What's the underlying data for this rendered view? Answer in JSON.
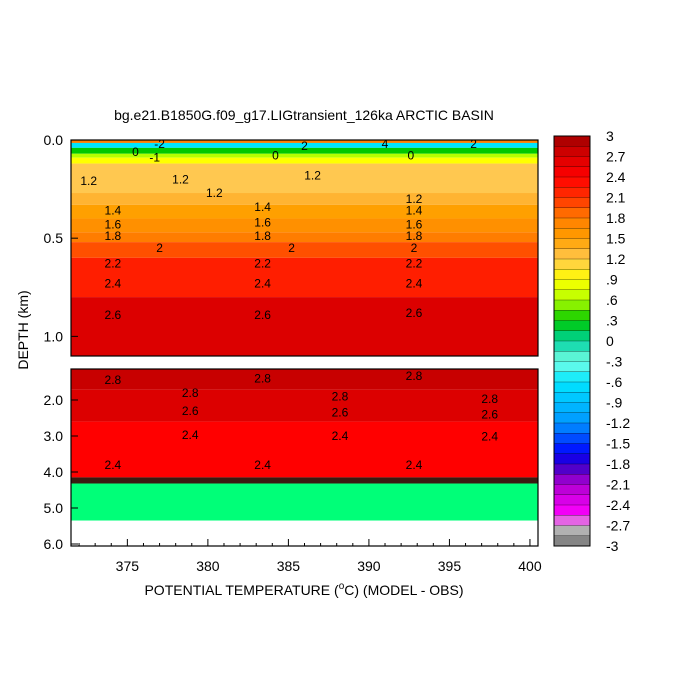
{
  "chart_data": {
    "type": "heatmap",
    "title": "bg.e21.B1850G.f09_g17.LIGtransient_126ka ARCTIC BASIN",
    "xlabel_pre": "POTENTIAL TEMPERATURE (",
    "xlabel_sup": "o",
    "xlabel_post": "C) (MODEL - OBS)",
    "ylabel": "DEPTH (km)",
    "xlim": [
      371.5,
      400.5
    ],
    "x_ticks": [
      "375",
      "380",
      "385",
      "390",
      "395",
      "400"
    ],
    "panels": [
      {
        "name": "upper",
        "ylim": [
          0.0,
          1.1
        ],
        "y_ticks": [
          "0.0",
          "0.5",
          "1.0"
        ],
        "contour_labels": [
          {
            "x": 377,
            "depth": 0.02,
            "text": "-2"
          },
          {
            "x": 375.5,
            "depth": 0.06,
            "text": "0"
          },
          {
            "x": 386,
            "depth": 0.03,
            "text": "2"
          },
          {
            "x": 391,
            "depth": 0.02,
            "text": "4"
          },
          {
            "x": 396.5,
            "depth": 0.02,
            "text": "2"
          },
          {
            "x": 376.7,
            "depth": 0.09,
            "text": "-1"
          },
          {
            "x": 384.2,
            "depth": 0.08,
            "text": "0"
          },
          {
            "x": 392.6,
            "depth": 0.08,
            "text": "0"
          },
          {
            "x": 372.6,
            "depth": 0.21,
            "text": "1.2"
          },
          {
            "x": 378.3,
            "depth": 0.2,
            "text": "1.2"
          },
          {
            "x": 380.4,
            "depth": 0.27,
            "text": "1.2"
          },
          {
            "x": 386.5,
            "depth": 0.18,
            "text": "1.2"
          },
          {
            "x": 392.8,
            "depth": 0.3,
            "text": "1.2"
          },
          {
            "x": 374.1,
            "depth": 0.36,
            "text": "1.4"
          },
          {
            "x": 383.4,
            "depth": 0.34,
            "text": "1.4"
          },
          {
            "x": 392.8,
            "depth": 0.36,
            "text": "1.4"
          },
          {
            "x": 374.1,
            "depth": 0.43,
            "text": "1.6"
          },
          {
            "x": 383.4,
            "depth": 0.42,
            "text": "1.6"
          },
          {
            "x": 392.8,
            "depth": 0.43,
            "text": "1.6"
          },
          {
            "x": 374.1,
            "depth": 0.49,
            "text": "1.8"
          },
          {
            "x": 383.4,
            "depth": 0.49,
            "text": "1.8"
          },
          {
            "x": 392.8,
            "depth": 0.49,
            "text": "1.8"
          },
          {
            "x": 377.0,
            "depth": 0.55,
            "text": "2"
          },
          {
            "x": 385.2,
            "depth": 0.55,
            "text": "2"
          },
          {
            "x": 392.8,
            "depth": 0.55,
            "text": "2"
          },
          {
            "x": 374.1,
            "depth": 0.63,
            "text": "2.2"
          },
          {
            "x": 383.4,
            "depth": 0.63,
            "text": "2.2"
          },
          {
            "x": 392.8,
            "depth": 0.63,
            "text": "2.2"
          },
          {
            "x": 374.1,
            "depth": 0.73,
            "text": "2.4"
          },
          {
            "x": 383.4,
            "depth": 0.73,
            "text": "2.4"
          },
          {
            "x": 392.8,
            "depth": 0.73,
            "text": "2.4"
          },
          {
            "x": 374.1,
            "depth": 0.89,
            "text": "2.6"
          },
          {
            "x": 383.4,
            "depth": 0.89,
            "text": "2.6"
          },
          {
            "x": 392.8,
            "depth": 0.88,
            "text": "2.6"
          }
        ]
      },
      {
        "name": "lower",
        "ylim": [
          1.1,
          6.0
        ],
        "y_ticks": [
          "2.0",
          "3.0",
          "4.0",
          "5.0",
          "6.0"
        ],
        "y_tick_values": [
          2.0,
          3.0,
          4.0,
          5.0,
          6.0
        ],
        "contour_labels": [
          {
            "x": 374.1,
            "depth": 1.42,
            "text": "2.8"
          },
          {
            "x": 383.4,
            "depth": 1.38,
            "text": "2.8"
          },
          {
            "x": 392.8,
            "depth": 1.3,
            "text": "2.8"
          },
          {
            "x": 378.9,
            "depth": 1.8,
            "text": "2.8"
          },
          {
            "x": 388.2,
            "depth": 1.9,
            "text": "2.8"
          },
          {
            "x": 397.5,
            "depth": 1.97,
            "text": "2.8"
          },
          {
            "x": 378.9,
            "depth": 2.3,
            "text": "2.6"
          },
          {
            "x": 388.2,
            "depth": 2.35,
            "text": "2.6"
          },
          {
            "x": 397.5,
            "depth": 2.4,
            "text": "2.6"
          },
          {
            "x": 378.9,
            "depth": 2.97,
            "text": "2.4"
          },
          {
            "x": 388.2,
            "depth": 3.0,
            "text": "2.4"
          },
          {
            "x": 397.5,
            "depth": 3.02,
            "text": "2.4"
          },
          {
            "x": 374.1,
            "depth": 3.8,
            "text": "2.4"
          },
          {
            "x": 383.4,
            "depth": 3.8,
            "text": "2.4"
          },
          {
            "x": 392.8,
            "depth": 3.8,
            "text": "2.4"
          }
        ]
      }
    ],
    "colorbar": {
      "min": -3,
      "max": 3,
      "step": 0.15,
      "tick_labels": [
        "3",
        "2.7",
        "2.4",
        "2.1",
        "1.8",
        "1.5",
        "1.2",
        ".9",
        ".6",
        ".3",
        "0",
        "-.3",
        "-.6",
        "-.9",
        "-1.2",
        "-1.5",
        "-1.8",
        "-2.1",
        "-2.4",
        "-2.7",
        "-3"
      ],
      "color_stops": [
        {
          "v": -3.0,
          "c": "#6e6e6e"
        },
        {
          "v": -2.7,
          "c": "#c8c8c8"
        },
        {
          "v": -2.55,
          "c": "#ff00ff"
        },
        {
          "v": -2.1,
          "c": "#b000d0"
        },
        {
          "v": -1.8,
          "c": "#3200c8"
        },
        {
          "v": -1.65,
          "c": "#0000ff"
        },
        {
          "v": -1.2,
          "c": "#0096ff"
        },
        {
          "v": -0.6,
          "c": "#00e6ff"
        },
        {
          "v": -0.3,
          "c": "#78ffe6"
        },
        {
          "v": 0.0,
          "c": "#00d2a0"
        },
        {
          "v": 0.3,
          "c": "#00c800"
        },
        {
          "v": 0.6,
          "c": "#b4ff00"
        },
        {
          "v": 0.9,
          "c": "#ffff00"
        },
        {
          "v": 1.2,
          "c": "#ffc850"
        },
        {
          "v": 1.5,
          "c": "#ffa000"
        },
        {
          "v": 1.8,
          "c": "#ff7d00"
        },
        {
          "v": 2.1,
          "c": "#ff3200"
        },
        {
          "v": 2.4,
          "c": "#ff0000"
        },
        {
          "v": 2.7,
          "c": "#dc0000"
        },
        {
          "v": 3.0,
          "c": "#a00000"
        }
      ]
    },
    "layers": [
      {
        "depth": [
          0.0,
          0.015
        ],
        "c": "#ff7d00"
      },
      {
        "depth": [
          0.015,
          0.04
        ],
        "c": "#00e6ff"
      },
      {
        "depth": [
          0.04,
          0.07
        ],
        "c": "#00c800"
      },
      {
        "depth": [
          0.07,
          0.09
        ],
        "c": "#b4ff00"
      },
      {
        "depth": [
          0.09,
          0.12
        ],
        "c": "#ffff00"
      },
      {
        "depth": [
          0.12,
          0.27
        ],
        "c": "#ffc850"
      },
      {
        "depth": [
          0.27,
          0.33
        ],
        "c": "#ffb432"
      },
      {
        "depth": [
          0.33,
          0.4
        ],
        "c": "#ffa000"
      },
      {
        "depth": [
          0.4,
          0.47
        ],
        "c": "#ff9000"
      },
      {
        "depth": [
          0.47,
          0.52
        ],
        "c": "#ff7d00"
      },
      {
        "depth": [
          0.52,
          0.6
        ],
        "c": "#ff5000"
      },
      {
        "depth": [
          0.6,
          0.8
        ],
        "c": "#ff1e00"
      },
      {
        "depth": [
          0.8,
          1.1
        ],
        "c": "#dc0000"
      },
      {
        "depth": [
          1.1,
          1.7
        ],
        "c": "#c80000"
      },
      {
        "depth": [
          1.7,
          2.6
        ],
        "c": "#dc0000"
      },
      {
        "depth": [
          2.6,
          4.15
        ],
        "c": "#ff0000"
      },
      {
        "depth": [
          4.15,
          4.32
        ],
        "c": "#3a1a10"
      },
      {
        "depth": [
          4.32,
          5.35
        ],
        "c": "#00ff78"
      },
      {
        "depth": [
          5.35,
          6.0
        ],
        "c": "#ffffff"
      }
    ]
  }
}
